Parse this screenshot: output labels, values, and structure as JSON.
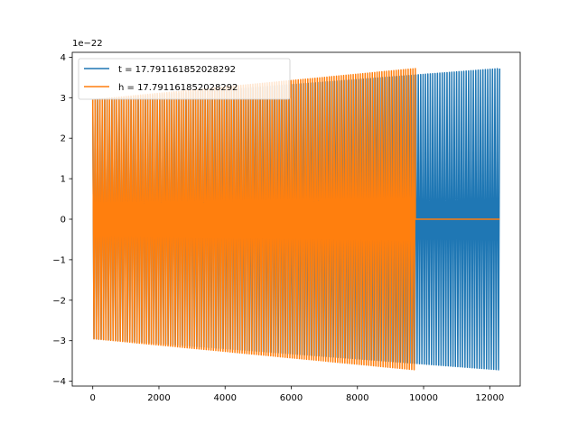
{
  "chart_data": {
    "type": "line",
    "title": "",
    "xlabel": "",
    "ylabel": "",
    "xlim": [
      -620,
      12920
    ],
    "ylim": [
      -4.12,
      4.12
    ],
    "y_offset_label": "1e−22",
    "x_ticks": [
      0,
      2000,
      4000,
      6000,
      8000,
      10000,
      12000
    ],
    "x_tick_labels": [
      "0",
      "2000",
      "4000",
      "6000",
      "8000",
      "10000",
      "12000"
    ],
    "y_ticks": [
      -4,
      -3,
      -2,
      -1,
      0,
      1,
      2,
      3,
      4
    ],
    "y_tick_labels": [
      "−4",
      "−3",
      "−2",
      "−1",
      "0",
      "1",
      "2",
      "3",
      "4"
    ],
    "grid": false,
    "legend_position": "upper-left",
    "series": [
      {
        "name": "t = 17.791161852028292",
        "color": "#1f77b4",
        "x_start": 0,
        "x_end": 12300,
        "amplitude_start": 2.95,
        "amplitude_end": 3.72,
        "oscillation_cycles": 170
      },
      {
        "name": "h = 17.791161852028292",
        "color": "#ff7f0e",
        "x_start": 0,
        "x_end": 9750,
        "amplitude_start": 2.95,
        "amplitude_end": 3.72,
        "oscillation_cycles": 135,
        "flat_x_end": 12300,
        "flat_value": 0
      }
    ]
  }
}
